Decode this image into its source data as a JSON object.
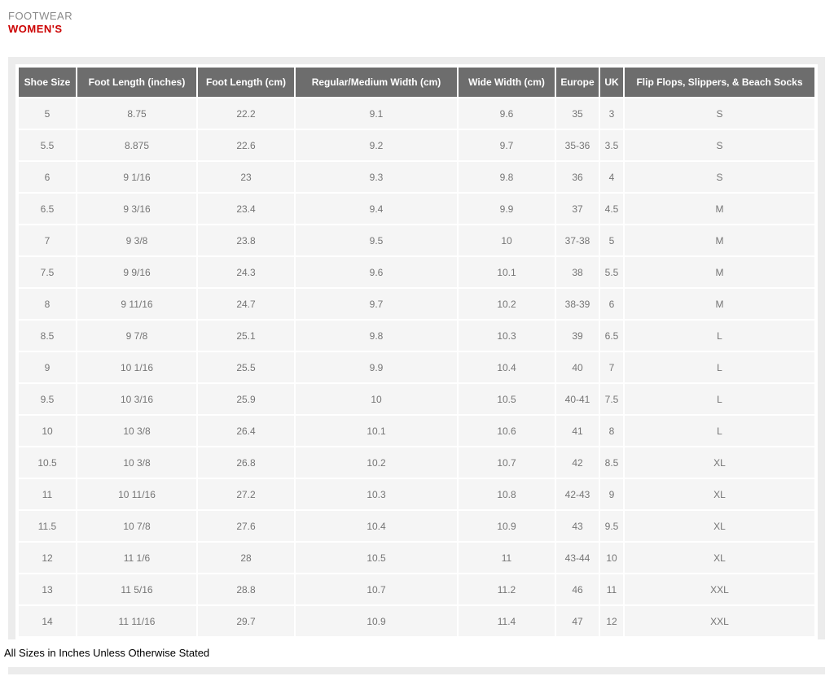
{
  "page": {
    "category_label": "FOOTWEAR",
    "title": "WOMEN'S",
    "footnote": "All Sizes in Inches Unless Otherwise Stated"
  },
  "colors": {
    "title_red": "#cc0000",
    "category_gray": "#8a8a8a",
    "header_bg": "#6d6d6d",
    "header_text": "#ffffff",
    "cell_bg": "#f5f5f5",
    "cell_text": "#757575",
    "panel_border": "#ececec"
  },
  "chart_data": {
    "type": "table",
    "title": "FOOTWEAR WOMEN'S",
    "columns": [
      "Shoe Size",
      "Foot Length (inches)",
      "Foot Length (cm)",
      "Regular/Medium Width (cm)",
      "Wide Width (cm)",
      "Europe",
      "UK",
      "Flip Flops, Slippers, & Beach Socks"
    ],
    "rows": [
      [
        "5",
        "8.75",
        "22.2",
        "9.1",
        "9.6",
        "35",
        "3",
        "S"
      ],
      [
        "5.5",
        "8.875",
        "22.6",
        "9.2",
        "9.7",
        "35-36",
        "3.5",
        "S"
      ],
      [
        "6",
        "9 1/16",
        "23",
        "9.3",
        "9.8",
        "36",
        "4",
        "S"
      ],
      [
        "6.5",
        "9 3/16",
        "23.4",
        "9.4",
        "9.9",
        "37",
        "4.5",
        "M"
      ],
      [
        "7",
        "9 3/8",
        "23.8",
        "9.5",
        "10",
        "37-38",
        "5",
        "M"
      ],
      [
        "7.5",
        "9 9/16",
        "24.3",
        "9.6",
        "10.1",
        "38",
        "5.5",
        "M"
      ],
      [
        "8",
        "9 11/16",
        "24.7",
        "9.7",
        "10.2",
        "38-39",
        "6",
        "M"
      ],
      [
        "8.5",
        "9 7/8",
        "25.1",
        "9.8",
        "10.3",
        "39",
        "6.5",
        "L"
      ],
      [
        "9",
        "10 1/16",
        "25.5",
        "9.9",
        "10.4",
        "40",
        "7",
        "L"
      ],
      [
        "9.5",
        "10 3/16",
        "25.9",
        "10",
        "10.5",
        "40-41",
        "7.5",
        "L"
      ],
      [
        "10",
        "10 3/8",
        "26.4",
        "10.1",
        "10.6",
        "41",
        "8",
        "L"
      ],
      [
        "10.5",
        "10 3/8",
        "26.8",
        "10.2",
        "10.7",
        "42",
        "8.5",
        "XL"
      ],
      [
        "11",
        "10 11/16",
        "27.2",
        "10.3",
        "10.8",
        "42-43",
        "9",
        "XL"
      ],
      [
        "11.5",
        "10 7/8",
        "27.6",
        "10.4",
        "10.9",
        "43",
        "9.5",
        "XL"
      ],
      [
        "12",
        "11 1/6",
        "28",
        "10.5",
        "11",
        "43-44",
        "10",
        "XL"
      ],
      [
        "13",
        "11 5/16",
        "28.8",
        "10.7",
        "11.2",
        "46",
        "11",
        "XXL"
      ],
      [
        "14",
        "11 11/16",
        "29.7",
        "10.9",
        "11.4",
        "47",
        "12",
        "XXL"
      ]
    ]
  }
}
